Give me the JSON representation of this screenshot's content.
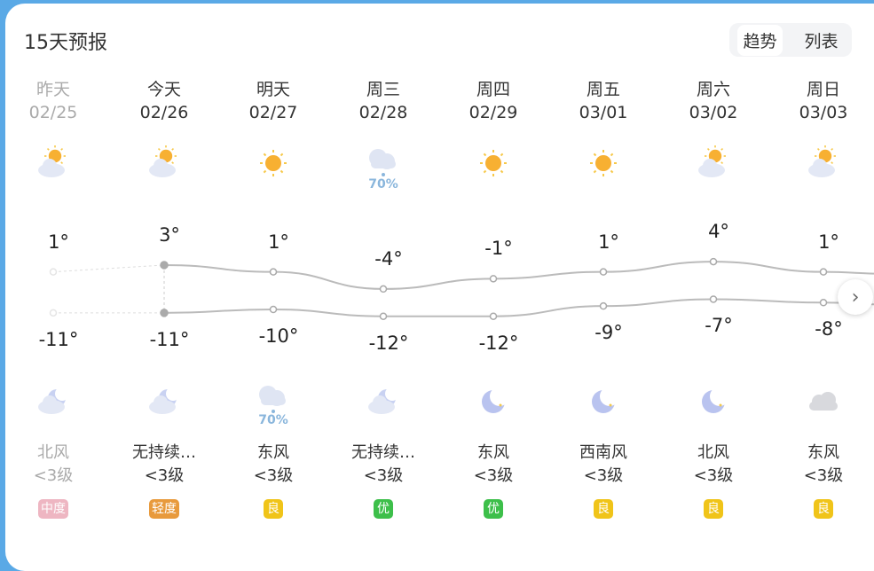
{
  "header": {
    "title": "15天预报",
    "toggle": [
      "趋势",
      "列表"
    ],
    "active_toggle": "趋势"
  },
  "days": [
    {
      "day": "昨天",
      "date": "02/25",
      "day_icon": "partly-cloudy-icon",
      "night_icon": "moon-cloud-icon",
      "high": "1°",
      "low": "-11°",
      "high_val": 1,
      "low_val": -11,
      "wind_dir": "北风",
      "wind_lvl": "<3级",
      "aqi": "中度",
      "aqi_color": "#e3869a",
      "past": true
    },
    {
      "day": "今天",
      "date": "02/26",
      "day_icon": "partly-cloudy-icon",
      "night_icon": "moon-cloud-icon",
      "high": "3°",
      "low": "-11°",
      "high_val": 3,
      "low_val": -11,
      "wind_dir": "无持续…",
      "wind_lvl": "<3级",
      "aqi": "轻度",
      "aqi_color": "#e89a3c"
    },
    {
      "day": "明天",
      "date": "02/27",
      "day_icon": "sun-icon",
      "night_icon": "rain-cloud-icon",
      "night_prob": "70%",
      "high": "1°",
      "low": "-10°",
      "high_val": 1,
      "low_val": -10,
      "wind_dir": "东风",
      "wind_lvl": "<3级",
      "aqi": "良",
      "aqi_color": "#f0c419"
    },
    {
      "day": "周三",
      "date": "02/28",
      "day_icon": "rain-cloud-icon",
      "day_prob": "70%",
      "night_icon": "moon-cloud-icon",
      "high": "-4°",
      "low": "-12°",
      "high_val": -4,
      "low_val": -12,
      "wind_dir": "无持续…",
      "wind_lvl": "<3级",
      "aqi": "优",
      "aqi_color": "#3dbf4a"
    },
    {
      "day": "周四",
      "date": "02/29",
      "day_icon": "sun-icon",
      "night_icon": "moon-star-icon",
      "high": "-1°",
      "low": "-12°",
      "high_val": -1,
      "low_val": -12,
      "wind_dir": "东风",
      "wind_lvl": "<3级",
      "aqi": "优",
      "aqi_color": "#3dbf4a"
    },
    {
      "day": "周五",
      "date": "03/01",
      "day_icon": "sun-icon",
      "night_icon": "moon-star-icon",
      "high": "1°",
      "low": "-9°",
      "high_val": 1,
      "low_val": -9,
      "wind_dir": "西南风",
      "wind_lvl": "<3级",
      "aqi": "良",
      "aqi_color": "#f0c419"
    },
    {
      "day": "周六",
      "date": "03/02",
      "day_icon": "partly-cloudy-icon",
      "night_icon": "moon-star-icon",
      "high": "4°",
      "low": "-7°",
      "high_val": 4,
      "low_val": -7,
      "wind_dir": "北风",
      "wind_lvl": "<3级",
      "aqi": "良",
      "aqi_color": "#f0c419"
    },
    {
      "day": "周日",
      "date": "03/03",
      "day_icon": "partly-cloudy-icon",
      "night_icon": "cloud-icon",
      "high": "1°",
      "low": "-8°",
      "high_val": 1,
      "low_val": -8,
      "wind_dir": "东风",
      "wind_lvl": "<3级",
      "aqi": "良",
      "aqi_color": "#f0c419"
    }
  ]
}
